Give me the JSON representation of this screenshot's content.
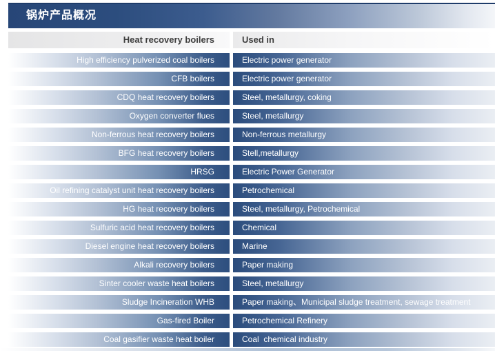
{
  "page": {
    "title": "锅炉产品概况"
  },
  "table": {
    "headers": {
      "col1": "Heat recovery boilers",
      "col2": "Used in"
    },
    "rows": [
      {
        "boiler": "High efficiency pulverized coal boilers",
        "used_in": "Electric power generator"
      },
      {
        "boiler": "CFB boilers",
        "used_in": "Electric power generator"
      },
      {
        "boiler": "CDQ heat recovery boilers",
        "used_in": "Steel, metallurgy, coking"
      },
      {
        "boiler": "Oxygen converter flues",
        "used_in": "Steel, metallurgy"
      },
      {
        "boiler": "Non-ferrous heat recovery boilers",
        "used_in": "Non-ferrous metallurgy"
      },
      {
        "boiler": "BFG heat recovery boilers",
        "used_in": "Stell,metallurgy"
      },
      {
        "boiler": "HRSG",
        "used_in": "Electric Power Generator"
      },
      {
        "boiler": "Oil refining catalyst unit heat recovery boilers",
        "used_in": "Petrochemical"
      },
      {
        "boiler": "HG heat recovery boilers",
        "used_in": "Steel, metallurgy, Petrochemical"
      },
      {
        "boiler": "Sulfuric acid heat recovery boilers",
        "used_in": "Chemical"
      },
      {
        "boiler": "Diesel engine heat recovery boilers",
        "used_in": "Marine"
      },
      {
        "boiler": "Alkali recovery boilers",
        "used_in": "Paper making"
      },
      {
        "boiler": "Sinter cooler waste heat boilers",
        "used_in": "Steel, metallurgy"
      },
      {
        "boiler": "Sludge Incineration WHB",
        "used_in": "Paper making、Municipal sludge treatment, sewage treatment"
      },
      {
        "boiler": "Gas-fired Boiler",
        "used_in": "Petrochemical Refinery"
      },
      {
        "boiler": "Coal gasifier waste heat boiler",
        "used_in": "Coal  chemical industry"
      }
    ]
  },
  "colors": {
    "title_bar_dark": "#274677",
    "row_dark_blue": "#2d4e7e",
    "header_text": "#3d3d3d",
    "row_text": "#ffffff"
  }
}
